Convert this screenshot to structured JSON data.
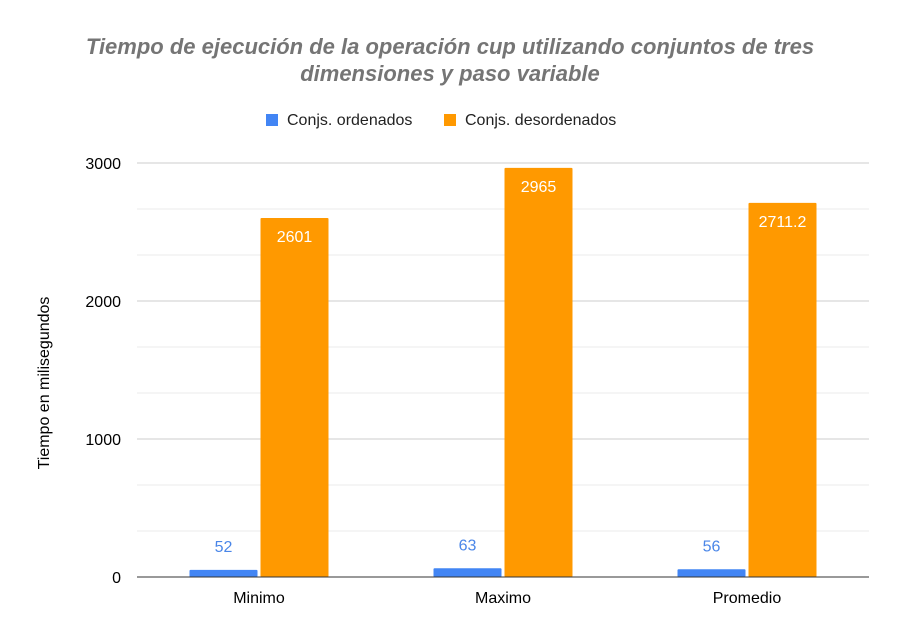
{
  "chart_data": {
    "type": "bar",
    "title_lines": [
      "Tiempo de ejecución de la operación cup utilizando conjuntos de tres",
      "dimensiones y paso variable"
    ],
    "xlabel": "",
    "ylabel": "Tiempo en  milisegundos",
    "categories": [
      "Minimo",
      "Maximo",
      "Promedio"
    ],
    "series": [
      {
        "name": "Conjs. ordenados",
        "color": "#4285f4",
        "label_color": "#4a86e8",
        "values": [
          52,
          63,
          56
        ],
        "labels": [
          "52",
          "63",
          "56"
        ]
      },
      {
        "name": "Conjs. desordenados",
        "color": "#ff9900",
        "label_color": "#ffffff",
        "values": [
          2601,
          2965,
          2711.2
        ],
        "labels": [
          "2601",
          "2965",
          "2711.2"
        ]
      }
    ],
    "ylim": [
      0,
      3000
    ],
    "yticks": [
      0,
      1000,
      2000,
      3000
    ],
    "ytick_labels": [
      "0",
      "1000",
      "2000",
      "3000"
    ],
    "minor_gridlines": true,
    "grid": true,
    "legend_position": "top-center"
  }
}
